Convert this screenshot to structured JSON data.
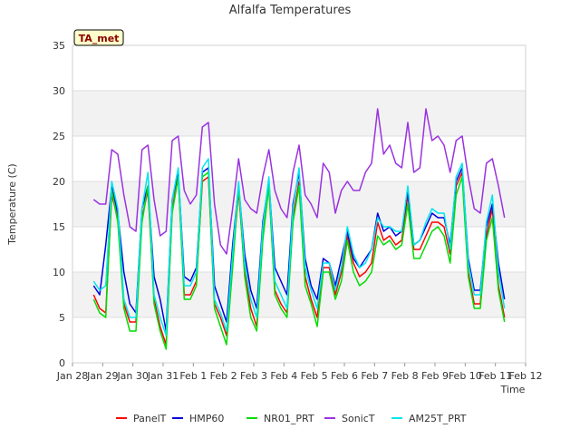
{
  "chart_data": {
    "type": "line",
    "title": "Alfalfa Temperatures",
    "xlabel": "Time",
    "ylabel": "Temperature (C)",
    "badge": "TA_met",
    "ylim": [
      0,
      35
    ],
    "yticks": [
      0,
      5,
      10,
      15,
      20,
      25,
      30,
      35
    ],
    "xlim": [
      0,
      15
    ],
    "xticks": [
      "Jan 28",
      "Jan 29",
      "Jan 30",
      "Jan 31",
      "Feb 1",
      "Feb 2",
      "Feb 3",
      "Feb 4",
      "Feb 5",
      "Feb 6",
      "Feb 7",
      "Feb 8",
      "Feb 9",
      "Feb 10",
      "Feb 11",
      "Feb 12"
    ],
    "legend_position": "bottom",
    "grid": "alternating horizontal bands",
    "x": [
      0.7,
      0.9,
      1.1,
      1.3,
      1.5,
      1.7,
      1.9,
      2.1,
      2.3,
      2.5,
      2.7,
      2.9,
      3.1,
      3.3,
      3.5,
      3.7,
      3.9,
      4.1,
      4.3,
      4.5,
      4.7,
      4.9,
      5.1,
      5.3,
      5.5,
      5.7,
      5.9,
      6.1,
      6.3,
      6.5,
      6.7,
      6.9,
      7.1,
      7.3,
      7.5,
      7.7,
      7.9,
      8.1,
      8.3,
      8.5,
      8.7,
      8.9,
      9.1,
      9.3,
      9.5,
      9.7,
      9.9,
      10.1,
      10.3,
      10.5,
      10.7,
      10.9,
      11.1,
      11.3,
      11.5,
      11.7,
      11.9,
      12.1,
      12.3,
      12.5,
      12.7,
      12.9,
      13.1,
      13.3,
      13.5,
      13.7,
      13.9,
      14.1,
      14.3
    ],
    "series": [
      {
        "name": "PanelT",
        "color": "#ff0000",
        "values": [
          7.5,
          6.0,
          5.5,
          18.5,
          16.0,
          6.5,
          4.5,
          4.5,
          16.0,
          19.0,
          7.0,
          4.0,
          2.0,
          17.0,
          20.5,
          7.5,
          7.5,
          9.0,
          20.0,
          20.5,
          6.5,
          5.0,
          3.0,
          11.0,
          19.0,
          10.0,
          6.0,
          4.0,
          14.0,
          19.5,
          8.0,
          6.5,
          5.5,
          16.0,
          20.0,
          9.5,
          7.0,
          5.0,
          10.5,
          10.5,
          7.5,
          10.0,
          14.0,
          11.0,
          9.5,
          10.0,
          11.0,
          15.5,
          13.5,
          14.0,
          13.0,
          13.5,
          18.5,
          12.5,
          12.5,
          14.0,
          15.5,
          15.5,
          15.0,
          12.0,
          19.5,
          21.0,
          10.0,
          6.5,
          6.5,
          14.0,
          17.0,
          8.5,
          5.0
        ]
      },
      {
        "name": "HMP60",
        "color": "#0000dd",
        "values": [
          8.5,
          7.5,
          13.0,
          19.5,
          16.5,
          10.0,
          6.5,
          5.5,
          17.0,
          19.5,
          9.5,
          7.0,
          3.5,
          18.0,
          21.0,
          9.5,
          9.0,
          10.5,
          21.0,
          21.5,
          8.5,
          6.5,
          4.5,
          13.0,
          19.5,
          12.0,
          8.0,
          6.0,
          15.5,
          20.0,
          10.5,
          9.0,
          7.5,
          17.5,
          21.0,
          11.5,
          8.5,
          7.0,
          11.5,
          11.0,
          8.5,
          11.5,
          14.5,
          11.5,
          10.5,
          11.5,
          12.5,
          16.5,
          14.5,
          15.0,
          14.0,
          14.5,
          19.0,
          13.0,
          13.5,
          15.0,
          16.5,
          16.0,
          16.0,
          13.0,
          20.0,
          21.5,
          11.5,
          8.0,
          8.0,
          15.0,
          17.5,
          11.0,
          7.0
        ]
      },
      {
        "name": "NR01_PRT",
        "color": "#00dd00",
        "values": [
          7.0,
          5.5,
          5.0,
          19.0,
          15.5,
          6.0,
          3.5,
          3.5,
          15.5,
          19.5,
          6.5,
          3.5,
          1.5,
          16.5,
          20.5,
          7.0,
          7.0,
          8.5,
          20.5,
          21.0,
          6.0,
          4.0,
          2.0,
          10.5,
          19.5,
          9.5,
          5.0,
          3.5,
          13.5,
          19.5,
          7.5,
          6.0,
          5.0,
          15.5,
          19.5,
          8.5,
          6.5,
          4.0,
          10.0,
          10.0,
          7.0,
          9.0,
          13.5,
          10.0,
          8.5,
          9.0,
          10.0,
          14.0,
          13.0,
          13.5,
          12.5,
          13.0,
          17.5,
          11.5,
          11.5,
          13.0,
          14.5,
          15.0,
          14.0,
          11.0,
          18.5,
          20.5,
          9.5,
          6.0,
          6.0,
          13.5,
          16.0,
          8.0,
          4.5
        ]
      },
      {
        "name": "SonicT",
        "color": "#9a32e0",
        "values": [
          18.0,
          17.5,
          17.5,
          23.5,
          23.0,
          18.5,
          15.0,
          14.5,
          23.5,
          24.0,
          18.0,
          14.0,
          14.5,
          24.5,
          25.0,
          19.0,
          17.5,
          18.5,
          26.0,
          26.5,
          17.5,
          13.0,
          12.0,
          17.0,
          22.5,
          18.0,
          17.0,
          16.5,
          20.5,
          23.5,
          19.0,
          17.0,
          16.0,
          21.0,
          24.0,
          18.5,
          17.5,
          16.0,
          22.0,
          21.0,
          16.5,
          19.0,
          20.0,
          19.0,
          19.0,
          21.0,
          22.0,
          28.0,
          23.0,
          24.0,
          22.0,
          21.5,
          26.5,
          21.0,
          21.5,
          28.0,
          24.5,
          25.0,
          24.0,
          21.0,
          24.5,
          25.0,
          20.5,
          17.0,
          16.5,
          22.0,
          22.5,
          19.5,
          16.0
        ]
      },
      {
        "name": "AM25T_PRT",
        "color": "#00e5ee",
        "values": [
          9.0,
          8.0,
          8.5,
          20.0,
          17.0,
          7.0,
          5.0,
          5.0,
          17.0,
          21.0,
          7.5,
          5.0,
          3.0,
          18.0,
          21.5,
          8.5,
          8.5,
          10.0,
          21.5,
          22.5,
          7.0,
          5.5,
          3.5,
          12.0,
          20.0,
          11.0,
          7.0,
          5.0,
          15.0,
          20.5,
          9.0,
          7.5,
          6.0,
          17.0,
          21.5,
          10.5,
          8.0,
          6.0,
          11.0,
          11.0,
          8.0,
          10.5,
          15.0,
          12.0,
          10.5,
          11.0,
          12.5,
          16.0,
          15.0,
          15.0,
          14.5,
          14.5,
          19.5,
          13.0,
          13.5,
          15.5,
          17.0,
          16.5,
          16.5,
          12.5,
          20.5,
          22.0,
          11.0,
          7.5,
          7.5,
          15.5,
          18.5,
          10.0,
          6.0
        ]
      }
    ]
  }
}
